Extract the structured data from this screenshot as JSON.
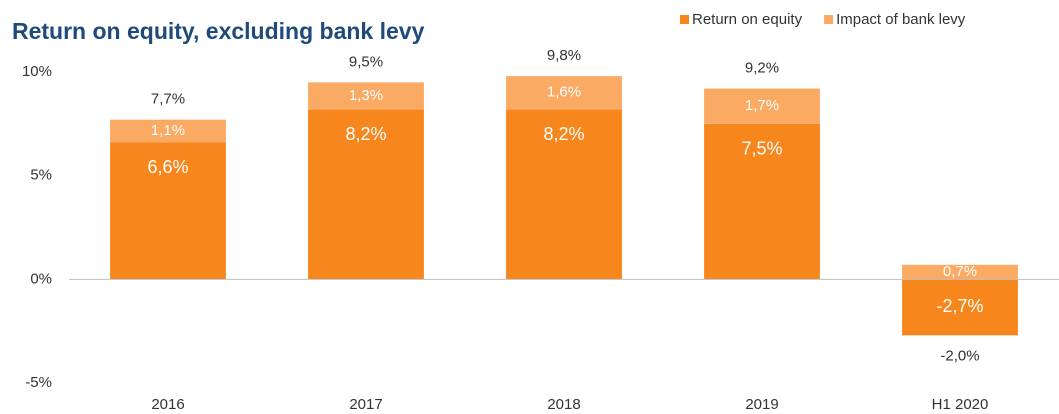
{
  "chart_data": {
    "type": "stacked_bar",
    "title": "Return on equity, excluding bank levy",
    "categories": [
      "2016",
      "2017",
      "2018",
      "2019",
      "H1 2020"
    ],
    "series": [
      {
        "name": "Return on equity",
        "color": "#f7861c",
        "values": [
          6.6,
          8.2,
          8.2,
          7.5,
          -2.7
        ],
        "value_labels": [
          "6,6%",
          "8,2%",
          "8,2%",
          "7,5%",
          "-2,7%"
        ]
      },
      {
        "name": "Impact of bank levy",
        "color": "#fbaa64",
        "values": [
          1.1,
          1.3,
          1.6,
          1.7,
          0.7
        ],
        "value_labels": [
          "1,1%",
          "1,3%",
          "1,6%",
          "1,7%",
          "0,7%"
        ]
      }
    ],
    "totals": {
      "values": [
        7.7,
        9.5,
        9.8,
        9.2,
        -2.0
      ],
      "value_labels": [
        "7,7%",
        "9,5%",
        "9,8%",
        "9,2%",
        "-2,0%"
      ]
    },
    "ylim": [
      -5,
      10
    ],
    "yticks": [
      {
        "value": -5,
        "label": "-5%"
      },
      {
        "value": 0,
        "label": "0%"
      },
      {
        "value": 5,
        "label": "5%"
      },
      {
        "value": 10,
        "label": "10%"
      }
    ],
    "legend": "top-right",
    "grid": false
  }
}
